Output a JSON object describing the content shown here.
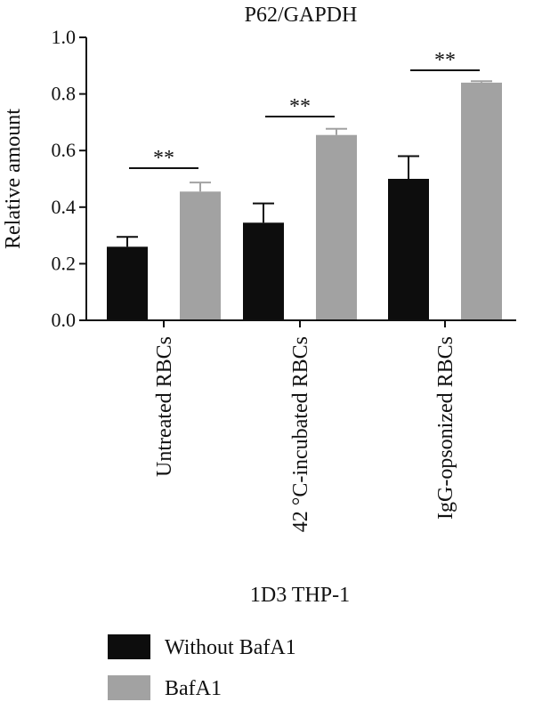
{
  "chart_data": {
    "type": "bar",
    "title": "P62/GAPDH",
    "ylabel": "Relative amount",
    "xlabel": "1D3 THP-1",
    "ylim": [
      0,
      1.0
    ],
    "yticks": [
      "0.0",
      "0.2",
      "0.4",
      "0.6",
      "0.8",
      "1.0"
    ],
    "categories": [
      "Untreated RBCs",
      "42 °C-incubated RBCs",
      "IgG-opsonized RBCs"
    ],
    "series": [
      {
        "name": "Without BafA1",
        "color": "#0d0d0d",
        "values": [
          0.26,
          0.345,
          0.5
        ],
        "errors": [
          0.035,
          0.068,
          0.08
        ]
      },
      {
        "name": "BafA1",
        "color": "#a2a2a2",
        "values": [
          0.455,
          0.655,
          0.84
        ],
        "errors": [
          0.032,
          0.022,
          0.005
        ]
      }
    ],
    "significance": [
      "**",
      "**",
      "**"
    ],
    "legend_position": "bottom-left",
    "grid": false
  }
}
